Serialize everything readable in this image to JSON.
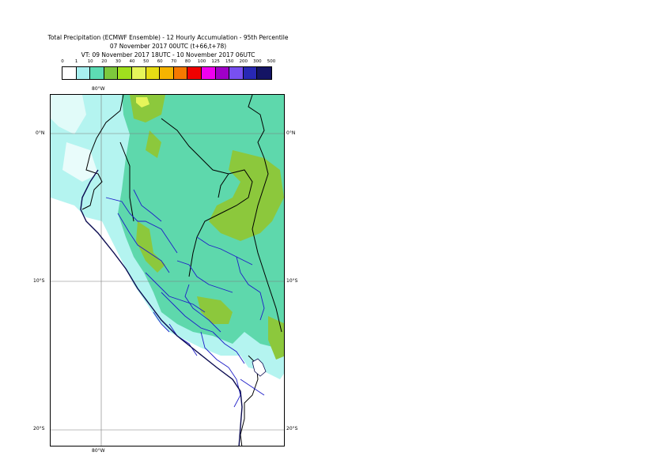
{
  "header": {
    "title_line1": "Total Precipitation (ECMWF Ensemble) - 12 Hourly Accumulation - 95th Percentile",
    "title_line2": "07 November 2017 00UTC (t+66,t+78)",
    "title_line3": "VT: 09 November 2017 18UTC - 10 November 2017 06UTC"
  },
  "legend": {
    "thresholds": [
      "0",
      "1",
      "10",
      "20",
      "30",
      "40",
      "50",
      "60",
      "70",
      "80",
      "100",
      "125",
      "150",
      "200",
      "300",
      "500"
    ],
    "colors": [
      "#ffffff",
      "#a8f0f0",
      "#5ddcb4",
      "#7dc83c",
      "#a0e01e",
      "#e6f55a",
      "#e6dc14",
      "#f5b400",
      "#f57800",
      "#f00000",
      "#f000f0",
      "#a000c8",
      "#7850f0",
      "#2828b4",
      "#141464"
    ]
  },
  "map": {
    "lon_label_top": "80°W",
    "lon_label_bottom": "80°W",
    "lat_labels": [
      "0°N",
      "10°S",
      "20°S"
    ],
    "colors": {
      "light_cyan": "#b4f4f0",
      "teal": "#5ed8ac",
      "green": "#8cc83c",
      "yellow": "#e6f55a",
      "country_border": "#000000",
      "region_border": "#1e1ec8",
      "coast": "#0a0a50",
      "grid": "#7a7a7a"
    }
  }
}
